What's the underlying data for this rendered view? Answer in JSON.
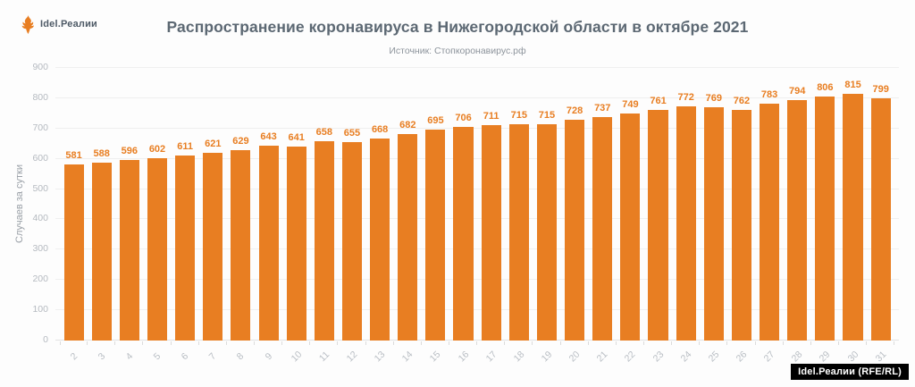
{
  "logo": {
    "text": "Idel.Реалии",
    "icon": "firebird-icon",
    "color": "#e87e22"
  },
  "header": {
    "title": "Распространение коронавируса в Нижегородской области в октябре 2021",
    "subtitle": "Источник: Стопкоронавирус.рф"
  },
  "chart_data": {
    "type": "bar",
    "categories": [
      "2",
      "3",
      "4",
      "5",
      "6",
      "7",
      "8",
      "9",
      "10",
      "11",
      "12",
      "13",
      "14",
      "15",
      "16",
      "17",
      "18",
      "19",
      "20",
      "21",
      "22",
      "23",
      "24",
      "25",
      "26",
      "27",
      "28",
      "29",
      "30",
      "31"
    ],
    "values": [
      581,
      588,
      596,
      602,
      611,
      621,
      629,
      643,
      641,
      658,
      655,
      668,
      682,
      695,
      706,
      711,
      715,
      715,
      728,
      737,
      749,
      761,
      772,
      769,
      762,
      783,
      794,
      806,
      815,
      799
    ],
    "title": "Распространение коронавируса в Нижегородской области в октябре 2021",
    "xlabel": "",
    "ylabel": "Случаев за сутки",
    "ylim": [
      0,
      900
    ],
    "ytick_step": 100,
    "grid": true,
    "legend_position": "none",
    "bar_color": "#e87e22",
    "value_label_color": "#e87e22"
  },
  "footer": {
    "badge": "Idel.Реалии (RFE/RL)"
  }
}
